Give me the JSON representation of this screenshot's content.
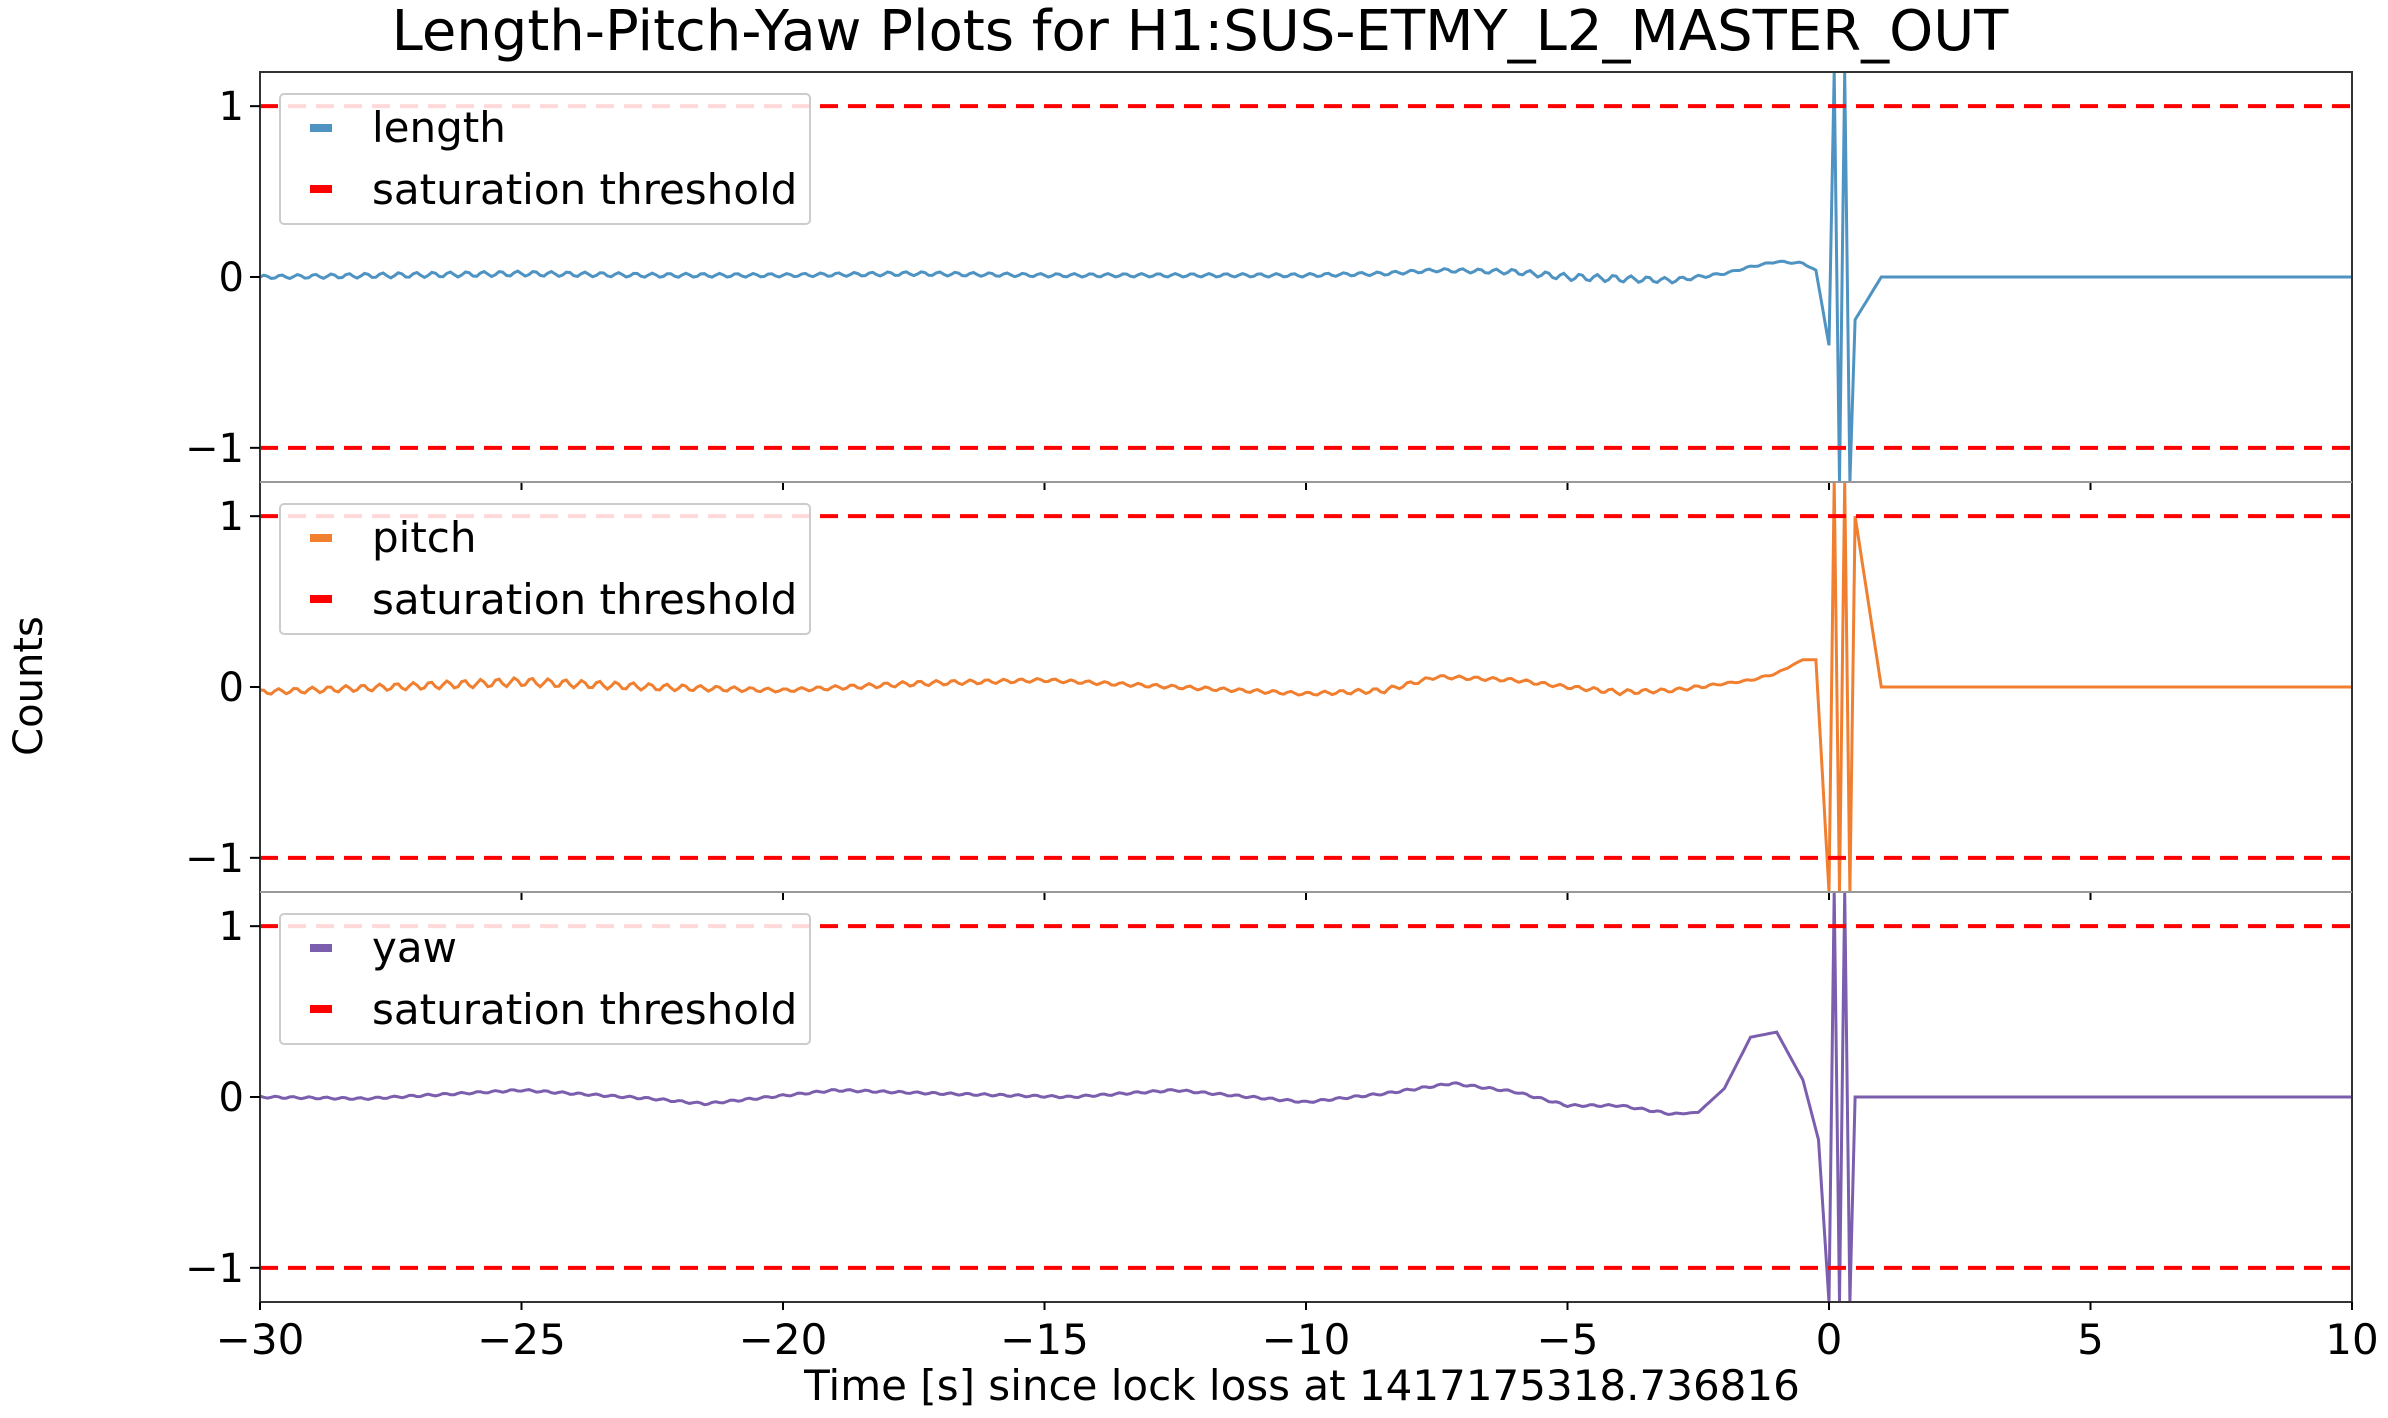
{
  "chart_data": {
    "type": "line",
    "title": "Length-Pitch-Yaw Plots for H1:SUS-ETMY_L2_MASTER_OUT",
    "xlabel": "Time [s] since lock loss at 1417175318.736816",
    "ylabel": "Counts",
    "xlim": [
      -30,
      10
    ],
    "ylim": [
      -1.2,
      1.2
    ],
    "x_ticks": [
      -30,
      -25,
      -20,
      -15,
      -10,
      -5,
      0,
      5,
      10
    ],
    "x_tick_labels": [
      "−30",
      "−25",
      "−20",
      "−15",
      "−10",
      "−5",
      "0",
      "5",
      "10"
    ],
    "y_ticks": [
      -1,
      0,
      1
    ],
    "y_tick_labels": [
      "−1",
      "0",
      "1"
    ],
    "grid": false,
    "legend_placement": "top-left",
    "threshold": {
      "name": "saturation threshold",
      "values": [
        1,
        -1
      ],
      "color": "#ff0000",
      "style": "dashed"
    },
    "panels": [
      {
        "series_name": "length",
        "color": "#4f93c2",
        "x": [
          -30,
          -27.5,
          -25,
          -22.5,
          -20,
          -17.5,
          -15,
          -12.5,
          -10,
          -8.5,
          -7.5,
          -6,
          -5,
          -4,
          -3,
          -2.5,
          -2,
          -1.5,
          -1,
          -0.5,
          -0.25,
          0,
          0.1,
          0.2,
          0.3,
          0.4,
          0.5,
          1,
          5,
          10
        ],
        "y": [
          0,
          0.01,
          0.02,
          0.01,
          0.01,
          0.02,
          0.01,
          0.01,
          0.01,
          0.02,
          0.04,
          0.03,
          0.0,
          -0.01,
          -0.02,
          0.0,
          0.02,
          0.06,
          0.09,
          0.08,
          0.04,
          -0.4,
          1.2,
          -1.2,
          1.2,
          -1.2,
          -0.25,
          0,
          0,
          0
        ],
        "ripple_amplitude": [
          0.01,
          0.015,
          0.015,
          0.012,
          0.01,
          0.012,
          0.01,
          0.01,
          0.01,
          0.01,
          0.01,
          0.015,
          0.02,
          0.02,
          0.015,
          0.01,
          0.005,
          0.005,
          0.005,
          0.005,
          0,
          0,
          0,
          0,
          0,
          0,
          0,
          0,
          0,
          0
        ]
      },
      {
        "series_name": "pitch",
        "color": "#f07f30",
        "x": [
          -30,
          -27.5,
          -25,
          -22.5,
          -20,
          -17.5,
          -15,
          -12.5,
          -10,
          -8.5,
          -7.5,
          -6,
          -5,
          -4,
          -3,
          -2.5,
          -2,
          -1.5,
          -1,
          -0.5,
          -0.25,
          0,
          0.1,
          0.2,
          0.3,
          0.4,
          0.5,
          1,
          5,
          10
        ],
        "y": [
          -0.03,
          0.0,
          0.03,
          0.0,
          -0.02,
          0.02,
          0.04,
          0.0,
          -0.04,
          -0.02,
          0.06,
          0.04,
          0.0,
          -0.03,
          -0.02,
          0.0,
          0.02,
          0.04,
          0.08,
          0.16,
          0.16,
          -1.2,
          1.2,
          -1.2,
          1.2,
          -1.2,
          1.0,
          0,
          0,
          0
        ],
        "ripple_amplitude": [
          0.015,
          0.02,
          0.025,
          0.02,
          0.01,
          0.015,
          0.01,
          0.01,
          0.01,
          0.015,
          0.01,
          0.01,
          0.01,
          0.015,
          0.01,
          0.01,
          0.005,
          0.005,
          0.005,
          0,
          0,
          0,
          0,
          0,
          0,
          0,
          0,
          0,
          0,
          0
        ]
      },
      {
        "series_name": "yaw",
        "color": "#7b5ead",
        "x": [
          -30,
          -28,
          -25,
          -22.5,
          -21.5,
          -19,
          -17,
          -14.5,
          -12.5,
          -10,
          -8.5,
          -7.2,
          -6,
          -5,
          -4,
          -3,
          -2.5,
          -2,
          -1.5,
          -1,
          -0.5,
          -0.2,
          0,
          0.1,
          0.2,
          0.3,
          0.4,
          0.5,
          1,
          5,
          10
        ],
        "y": [
          0,
          -0.01,
          0.04,
          -0.01,
          -0.04,
          0.04,
          0.02,
          0.0,
          0.04,
          -0.03,
          0.02,
          0.08,
          0.03,
          -0.05,
          -0.05,
          -0.1,
          -0.09,
          0.05,
          0.35,
          0.38,
          0.1,
          -0.25,
          -1.2,
          1.2,
          -1.2,
          1.2,
          -1.2,
          0.0,
          0,
          0,
          0
        ],
        "ripple_amplitude": [
          0.006,
          0.006,
          0.006,
          0.006,
          0.006,
          0.006,
          0.006,
          0.006,
          0.006,
          0.006,
          0.006,
          0.006,
          0.006,
          0.006,
          0.006,
          0.006,
          0,
          0,
          0,
          0,
          0,
          0,
          0,
          0,
          0,
          0,
          0,
          0,
          0,
          0,
          0
        ]
      }
    ]
  }
}
